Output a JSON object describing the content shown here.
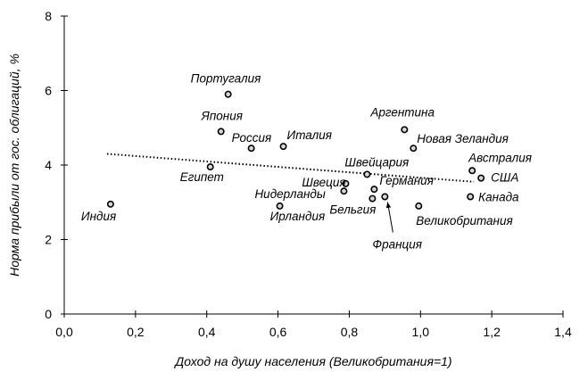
{
  "chart_data": {
    "type": "scatter",
    "title": "",
    "xlabel": "Доход на душу населения (Великобритания=1)",
    "ylabel": "Норма прибыли от гос. облигаций, %",
    "xlim": [
      0,
      1.4
    ],
    "ylim": [
      0,
      8
    ],
    "x_ticks": [
      "0,0",
      "0,2",
      "0,4",
      "0,6",
      "0,8",
      "1,0",
      "1,2",
      "1,4"
    ],
    "y_ticks": [
      "0",
      "2",
      "4",
      "6",
      "8"
    ],
    "grid": false,
    "legend": "none",
    "trendline": {
      "style": "dotted",
      "x": [
        0.12,
        1.15
      ],
      "y": [
        4.3,
        3.55
      ]
    },
    "points": [
      {
        "label": "Индия",
        "x": 0.13,
        "y": 2.95
      },
      {
        "label": "Египет",
        "x": 0.41,
        "y": 3.95
      },
      {
        "label": "Португалия",
        "x": 0.46,
        "y": 5.9
      },
      {
        "label": "Япония",
        "x": 0.44,
        "y": 4.9
      },
      {
        "label": "Россия",
        "x": 0.525,
        "y": 4.45
      },
      {
        "label": "Италия",
        "x": 0.615,
        "y": 4.5
      },
      {
        "label": "Ирландия",
        "x": 0.605,
        "y": 2.9
      },
      {
        "label": "Нидерланды",
        "x": 0.785,
        "y": 3.3
      },
      {
        "label": "Швеция",
        "x": 0.79,
        "y": 3.5
      },
      {
        "label": "Швейцария",
        "x": 0.85,
        "y": 3.75
      },
      {
        "label": "Бельгия",
        "x": 0.865,
        "y": 3.1
      },
      {
        "label": "Германия",
        "x": 0.87,
        "y": 3.35
      },
      {
        "label": "Франция",
        "x": 0.9,
        "y": 3.15
      },
      {
        "label": "Аргентина",
        "x": 0.955,
        "y": 4.95
      },
      {
        "label": "Новая Зеландия",
        "x": 0.98,
        "y": 4.45
      },
      {
        "label": "Великобритания",
        "x": 0.995,
        "y": 2.9
      },
      {
        "label": "Австралия",
        "x": 1.145,
        "y": 3.85
      },
      {
        "label": "США",
        "x": 1.17,
        "y": 3.65
      },
      {
        "label": "Канада",
        "x": 1.14,
        "y": 3.15
      }
    ]
  }
}
